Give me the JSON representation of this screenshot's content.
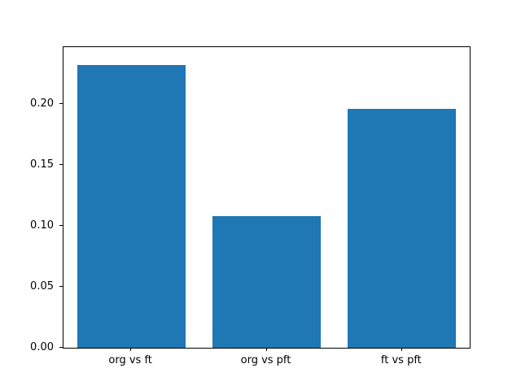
{
  "chart_data": {
    "type": "bar",
    "categories": [
      "org vs ft",
      "org vs pft",
      "ft vs pft"
    ],
    "values": [
      0.232,
      0.108,
      0.196
    ],
    "title": "",
    "xlabel": "",
    "ylabel": "",
    "ylim": [
      0,
      0.2467
    ],
    "yticks": [
      0.0,
      0.05,
      0.1,
      0.15,
      0.2
    ],
    "ytick_labels": [
      "0.00",
      "0.05",
      "0.10",
      "0.15",
      "0.20"
    ],
    "bar_color": "#1f77b4",
    "grid": false,
    "legend_position": "none"
  }
}
